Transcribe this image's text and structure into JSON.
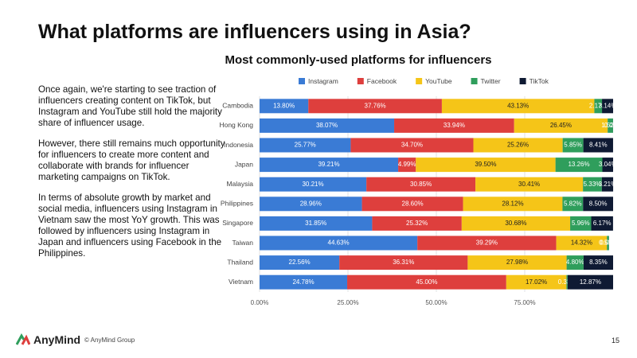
{
  "header": {
    "title": "What platforms are influencers using in Asia?"
  },
  "body": {
    "paragraphs": [
      "Once again, we're starting to see traction of influencers creating content on TikTok, but Instagram and YouTube still hold the majority share of influencer usage.",
      "However, there still remains much opportunity for influencers to create more content and collaborate with brands for influencer marketing campaigns on TikTok.",
      "In terms of absolute growth by market and social media, influencers using Instagram in Vietnam saw the most YoY growth. This was followed by influencers using Instagram in Japan and influencers using Facebook in the Philippines."
    ]
  },
  "chart_data": {
    "type": "stacked_bar_horizontal",
    "title": "Most commonly-used platforms for influencers",
    "categories": [
      "Cambodia",
      "Hong Kong",
      "Indonesia",
      "Japan",
      "Malaysia",
      "Philippines",
      "Singapore",
      "Taiwan",
      "Thailand",
      "Vietnam"
    ],
    "series": [
      {
        "name": "Instagram",
        "color": "#3a7bd5",
        "values": [
          13.8,
          38.07,
          25.77,
          39.21,
          30.21,
          28.96,
          31.85,
          44.63,
          22.56,
          24.78
        ],
        "value_labels": [
          "13.80%",
          "38.07%",
          "25.77%",
          "39.21%",
          "30.21%",
          "28.96%",
          "31.85%",
          "44.63%",
          "22.56%",
          "24.78%"
        ]
      },
      {
        "name": "Facebook",
        "color": "#de3f3d",
        "values": [
          37.76,
          33.94,
          34.7,
          4.99,
          30.85,
          28.6,
          25.32,
          39.29,
          36.31,
          45.0
        ],
        "value_labels": [
          "37.76%",
          "33.94%",
          "34.70%",
          "4.99%",
          "30.85%",
          "28.60%",
          "25.32%",
          "39.29%",
          "36.31%",
          "45.00%"
        ]
      },
      {
        "name": "YouTube",
        "color": "#f5c518",
        "values": [
          43.13,
          26.45,
          25.26,
          39.5,
          30.41,
          28.12,
          30.68,
          14.32,
          27.98,
          17.02
        ],
        "value_labels": [
          "43.13%",
          "26.45%",
          "25.26%",
          "39.50%",
          "30.41%",
          "28.12%",
          "30.68%",
          "14.32%",
          "27.98%",
          "17.02%"
        ]
      },
      {
        "name": "Twitter",
        "color": "#2f9e5c",
        "values": [
          2.17,
          1.52,
          5.85,
          13.26,
          5.33,
          5.82,
          5.96,
          0.59,
          4.8,
          0.33
        ],
        "value_labels": [
          "2.17%",
          "1.52%",
          "5.85%",
          "13.26%",
          "5.33%",
          "5.82%",
          "5.96%",
          "0.59%",
          "4.80%",
          "0.33%"
        ]
      },
      {
        "name": "TikTok",
        "color": "#0f1a33",
        "values": [
          3.14,
          0.02,
          8.41,
          3.04,
          3.21,
          8.5,
          6.17,
          0.02,
          8.35,
          12.87
        ],
        "value_labels": [
          "3.14%",
          "0.02%",
          "8.41%",
          "3.04%",
          "3.21%",
          "8.50%",
          "6.17%",
          "0.02%",
          "8.35%",
          "12.87%"
        ]
      }
    ],
    "xlim": [
      0,
      100
    ],
    "xticks": [
      {
        "value": 0,
        "label": "0.00%"
      },
      {
        "value": 25,
        "label": "25.00%"
      },
      {
        "value": 50,
        "label": "50.00%"
      },
      {
        "value": 75,
        "label": "75.00%"
      }
    ],
    "legend": "top"
  },
  "footer": {
    "brand": "AnyMind",
    "copyright": "© AnyMind Group",
    "page": "15"
  }
}
